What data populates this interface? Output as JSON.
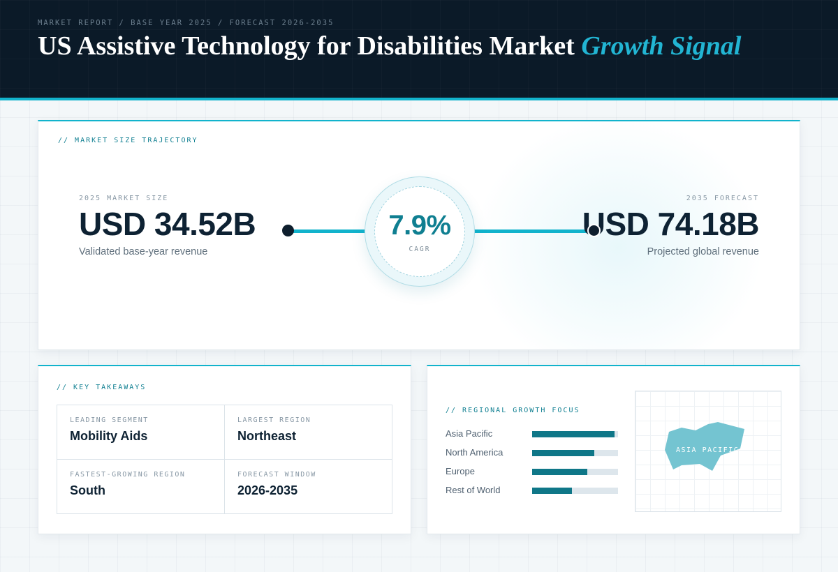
{
  "header": {
    "eyebrow": "MARKET REPORT / BASE YEAR 2025 / FORECAST 2026-2035",
    "title_main": "US Assistive Technology for Disabilities Market",
    "title_accent": "Growth Signal"
  },
  "trajectory": {
    "section_label": "// MARKET SIZE TRAJECTORY",
    "start": {
      "label": "2025 MARKET SIZE",
      "value": "USD 34.52B",
      "note": "Validated base-year revenue"
    },
    "end": {
      "label": "2035 FORECAST",
      "value": "USD 74.18B",
      "note": "Projected global revenue"
    },
    "cagr": {
      "value": "7.9%",
      "label": "CAGR"
    }
  },
  "takeaways": {
    "section_label": "// KEY TAKEAWAYS",
    "items": [
      {
        "label": "LEADING SEGMENT",
        "value": "Mobility Aids"
      },
      {
        "label": "LARGEST REGION",
        "value": "Northeast"
      },
      {
        "label": "FASTEST-GROWING REGION",
        "value": "South"
      },
      {
        "label": "FORECAST WINDOW",
        "value": "2026-2035"
      }
    ]
  },
  "regional": {
    "section_label": "// REGIONAL GROWTH FOCUS",
    "map_label": "ASIA PACIFIC",
    "colors": {
      "bar": "#0f7788",
      "track": "#dde6ec",
      "map_shape": "#74c4d1"
    }
  },
  "chart_data": {
    "type": "bar",
    "orientation": "horizontal",
    "categories": [
      "Asia Pacific",
      "North America",
      "Europe",
      "Rest of World"
    ],
    "values": [
      0.96,
      0.72,
      0.64,
      0.46
    ],
    "xlim": [
      0,
      1
    ],
    "grid": false
  }
}
